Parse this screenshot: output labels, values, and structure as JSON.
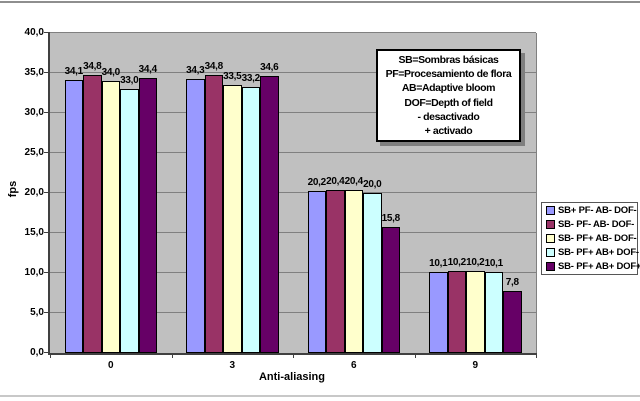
{
  "chart_data": {
    "type": "bar",
    "title": "",
    "xlabel": "Anti-aliasing",
    "ylabel": "fps",
    "categories": [
      "0",
      "3",
      "6",
      "9"
    ],
    "series": [
      {
        "name": "SB+ PF- AB- DOF-",
        "color": "#9999FF",
        "values": [
          34.1,
          34.3,
          20.2,
          10.1
        ]
      },
      {
        "name": "SB- PF- AB- DOF-",
        "color": "#993366",
        "values": [
          34.8,
          34.8,
          20.4,
          10.2
        ]
      },
      {
        "name": "SB- PF+ AB- DOF-",
        "color": "#FFFFCC",
        "values": [
          34.0,
          33.5,
          20.4,
          10.2
        ]
      },
      {
        "name": "SB- PF+ AB+ DOF-",
        "color": "#CCFFFF",
        "values": [
          33.0,
          33.2,
          20.0,
          10.1
        ]
      },
      {
        "name": "SB- PF+ AB+ DOF+",
        "color": "#660066",
        "values": [
          34.4,
          34.6,
          15.8,
          7.8
        ]
      }
    ],
    "ylim": [
      0,
      40
    ],
    "ytick_step": 5,
    "decimal_separator": ",",
    "grid": true,
    "data_labels": true,
    "legend_position": "right",
    "plot_bg_color": "#C0C0C0",
    "gridline_color": "#808080",
    "axis_color": "#404040"
  },
  "info_box": {
    "lines": [
      "SB=Sombras básicas",
      "PF=Procesamiento de flora",
      "AB=Adaptive bloom",
      "DOF=Depth of field",
      "- desactivado",
      "+ activado"
    ]
  },
  "frame": {
    "top_line_color": "#8e8e8e",
    "bottom_line_color": "#c8c8c8"
  }
}
